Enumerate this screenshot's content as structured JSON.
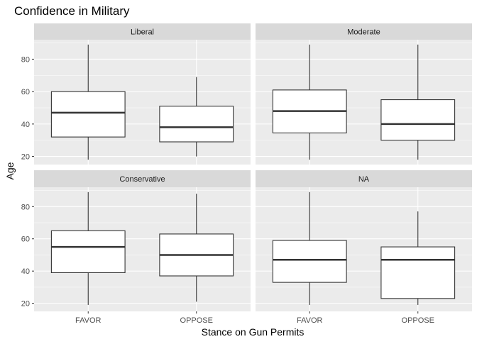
{
  "chart_data": {
    "type": "boxplot",
    "title": "Confidence in Military",
    "xlabel": "Stance on Gun Permits",
    "ylabel": "Age",
    "categories": [
      "FAVOR",
      "OPPOSE"
    ],
    "ylim": [
      15,
      92
    ],
    "yticks": [
      20,
      40,
      60,
      80
    ],
    "grid": true,
    "colors": {
      "panel_background": "#ebebeb",
      "strip_background": "#d9d9d9",
      "gridline": "#ffffff",
      "box_fill": "#ffffff",
      "box_line": "#333333",
      "median_line": "#333333"
    },
    "panels": [
      {
        "label": "Liberal",
        "boxes": [
          {
            "category": "FAVOR",
            "min": 18,
            "q1": 32,
            "median": 47,
            "q3": 60,
            "max": 89
          },
          {
            "category": "OPPOSE",
            "min": 20,
            "q1": 29,
            "median": 38,
            "q3": 51,
            "max": 69
          }
        ]
      },
      {
        "label": "Moderate",
        "boxes": [
          {
            "category": "FAVOR",
            "min": 18,
            "q1": 34.5,
            "median": 48,
            "q3": 61,
            "max": 89
          },
          {
            "category": "OPPOSE",
            "min": 18,
            "q1": 30,
            "median": 40,
            "q3": 55,
            "max": 89
          }
        ]
      },
      {
        "label": "Conservative",
        "boxes": [
          {
            "category": "FAVOR",
            "min": 19,
            "q1": 39,
            "median": 55,
            "q3": 65,
            "max": 89
          },
          {
            "category": "OPPOSE",
            "min": 21,
            "q1": 37,
            "median": 50,
            "q3": 63,
            "max": 88
          }
        ]
      },
      {
        "label": "NA",
        "boxes": [
          {
            "category": "FAVOR",
            "min": 19,
            "q1": 33,
            "median": 47,
            "q3": 59,
            "max": 89
          },
          {
            "category": "OPPOSE",
            "min": 19,
            "q1": 23,
            "median": 47,
            "q3": 55,
            "max": 77
          }
        ]
      }
    ]
  }
}
